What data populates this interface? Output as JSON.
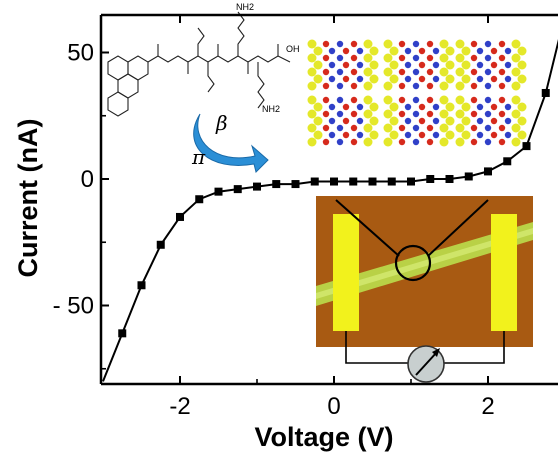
{
  "chart_data": {
    "type": "line",
    "xlabel": "Voltage (V)",
    "ylabel": "Current (nA)",
    "xlim": [
      -3,
      3
    ],
    "ylim": [
      -80,
      65
    ],
    "xticks": [
      -2,
      0,
      2
    ],
    "yticks": [
      50,
      0,
      -50
    ],
    "x_tick_labels": [
      "-2",
      "0",
      "2"
    ],
    "y_tick_labels": [
      "50",
      "0",
      "- 50"
    ],
    "grid": false,
    "legend": "none",
    "series": [
      {
        "marker": "square",
        "color": "#000000",
        "x": [
          -2.75,
          -2.5,
          -2.25,
          -2.0,
          -1.75,
          -1.5,
          -1.25,
          -1.0,
          -0.75,
          -0.5,
          -0.25,
          0.0,
          0.25,
          0.5,
          0.75,
          1.0,
          1.25,
          1.5,
          1.75,
          2.0,
          2.25,
          2.5,
          2.75
        ],
        "y": [
          -61,
          -42,
          -26,
          -15,
          -8,
          -5,
          -4,
          -3,
          -2,
          -2,
          -1,
          -1,
          -1,
          -1,
          -1,
          -1,
          0,
          0,
          1,
          3,
          7,
          13,
          34
        ]
      }
    ],
    "curve_extent": {
      "x_start": -3.0,
      "y_start": -80,
      "x_end": 3.0,
      "y_end": 65
    },
    "annotations": {
      "molecule_labels": {
        "nh2_top": "NH2",
        "oh": "OH",
        "nh2_bottom": "NH2"
      },
      "pi_label": "π",
      "beta_label": "β"
    },
    "colors": {
      "curve": "#000000",
      "beta_arrow": "#2b8fd6",
      "afm_background": "#a85a12",
      "electrode": "#f2f21c",
      "fiber": "#b9d84a",
      "meter": "#c8cfcf",
      "crystal_yellow": "#e4e82a",
      "crystal_red": "#d62a1c",
      "crystal_blue": "#3040c8"
    }
  }
}
